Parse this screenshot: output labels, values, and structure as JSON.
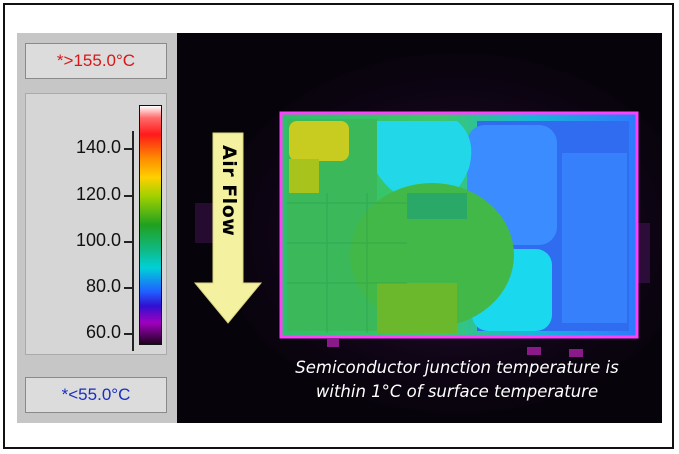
{
  "scale": {
    "max_limit": "*>155.0°C",
    "min_limit": "*<55.0°C",
    "ticks": [
      "140.0",
      "120.0",
      "100.0",
      "80.0",
      "60.0"
    ]
  },
  "thermal_image": {
    "airflow_label": "Air Flow",
    "caption_line1": "Semiconductor junction temperature is",
    "caption_line2": "within 1°C of surface temperature"
  },
  "colors": {
    "max_limit_text": "#d81818",
    "min_limit_text": "#1a2ec0",
    "arrow_fill": "#f4f2a0",
    "board_outline": "#ff40ff"
  }
}
